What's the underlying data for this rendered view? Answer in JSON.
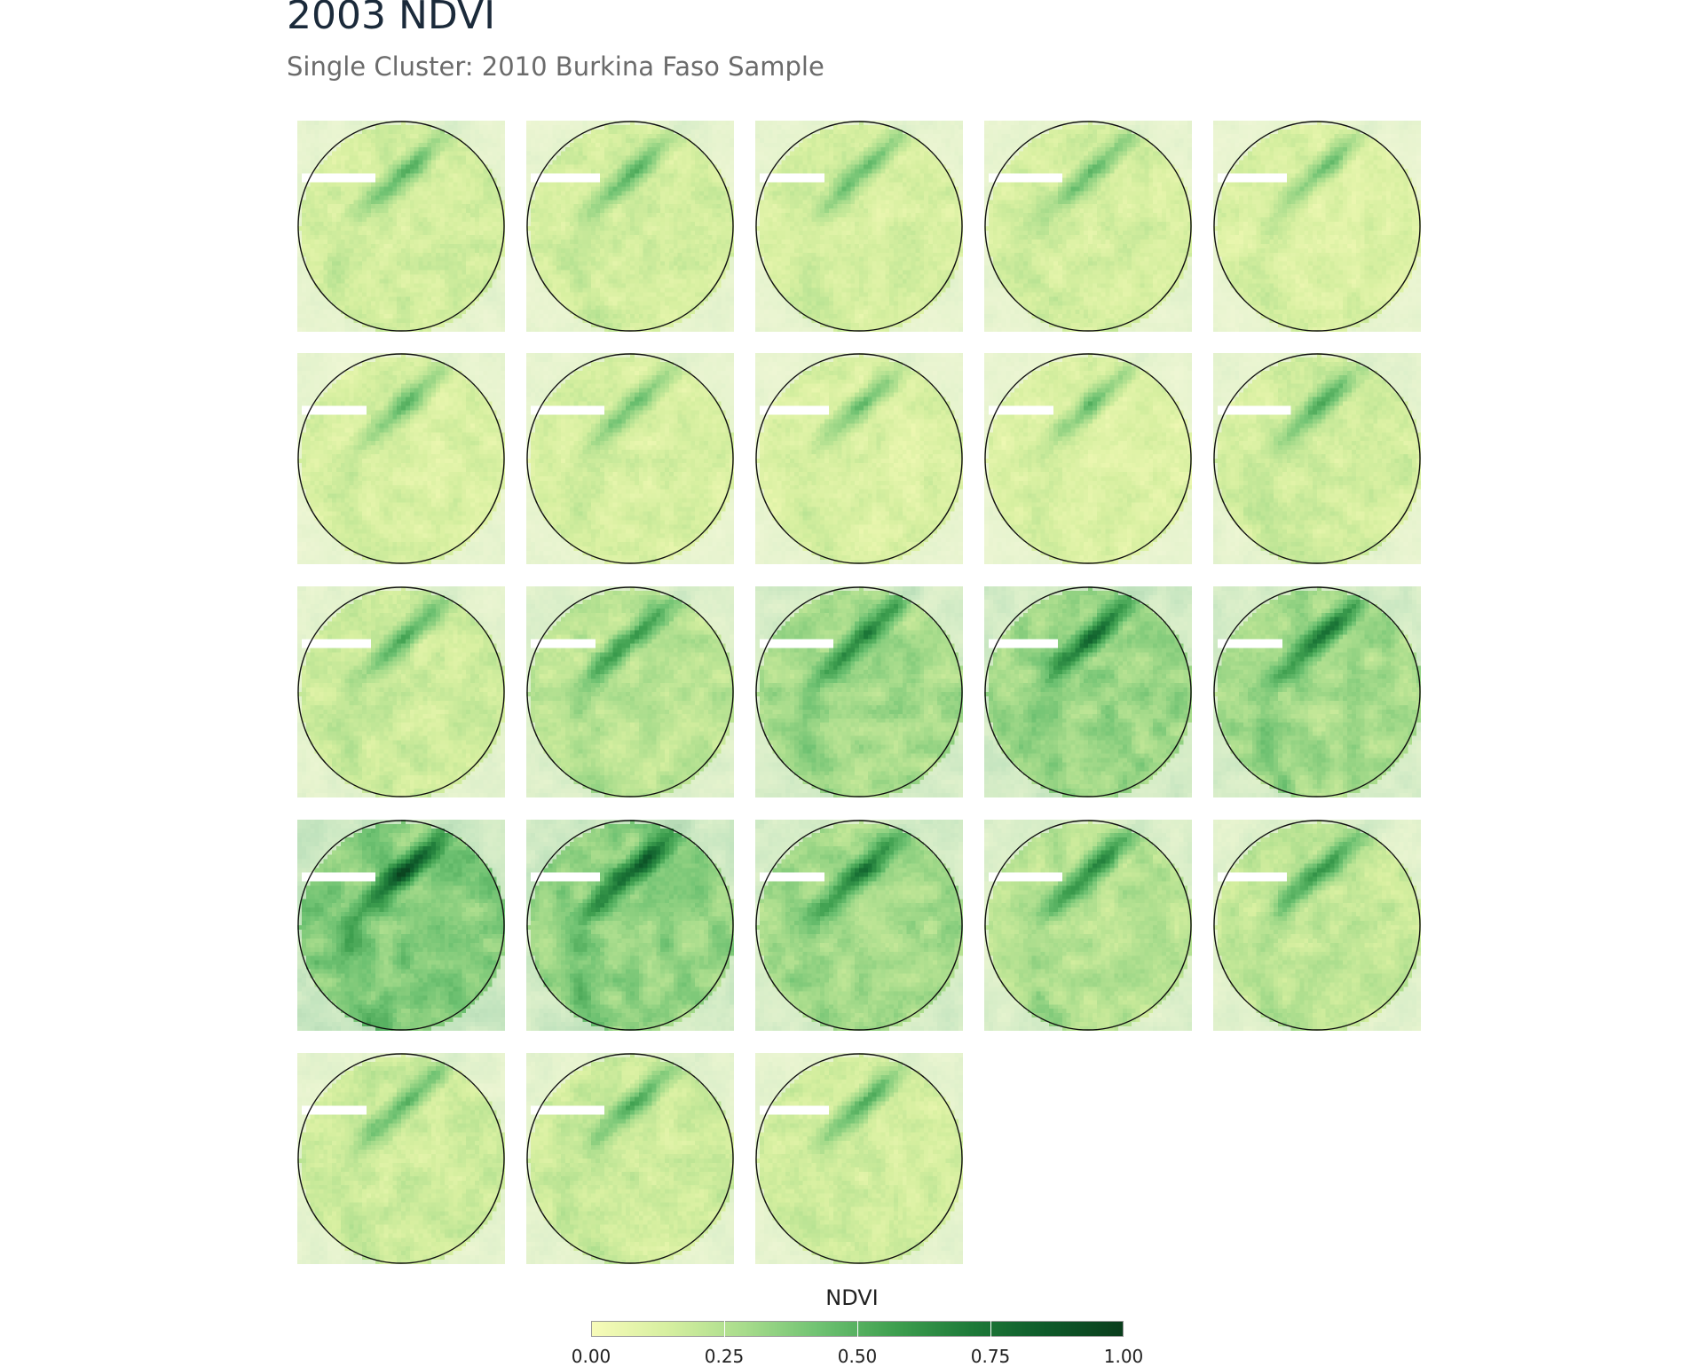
{
  "header": {
    "title": "2003 NDVI",
    "subtitle": "Single Cluster: 2010 Burkina Faso Sample"
  },
  "map": {
    "panel_count": 23,
    "columns": 5,
    "panel_mean_ndvi": [
      0.2,
      0.19,
      0.18,
      0.19,
      0.16,
      0.17,
      0.17,
      0.16,
      0.15,
      0.2,
      0.22,
      0.3,
      0.38,
      0.42,
      0.38,
      0.5,
      0.46,
      0.38,
      0.32,
      0.27,
      0.22,
      0.22,
      0.2
    ],
    "panel_nodata_stripe": [
      true,
      true,
      true,
      true,
      true,
      true,
      true,
      true,
      true,
      true,
      true,
      true,
      true,
      true,
      true,
      true,
      true,
      true,
      true,
      true,
      true,
      true,
      true
    ],
    "boundary_shape": "circle"
  },
  "legend": {
    "title": "NDVI",
    "min": 0.0,
    "max": 1.0,
    "ticks": [
      "0.00",
      "0.25",
      "0.50",
      "0.75",
      "1.00"
    ],
    "colors": [
      "#f7fbb9",
      "#d6efa0",
      "#a8dc8c",
      "#6fc272",
      "#3e9f4f",
      "#1e7a39",
      "#0e5a2a",
      "#0a3d1c"
    ]
  }
}
